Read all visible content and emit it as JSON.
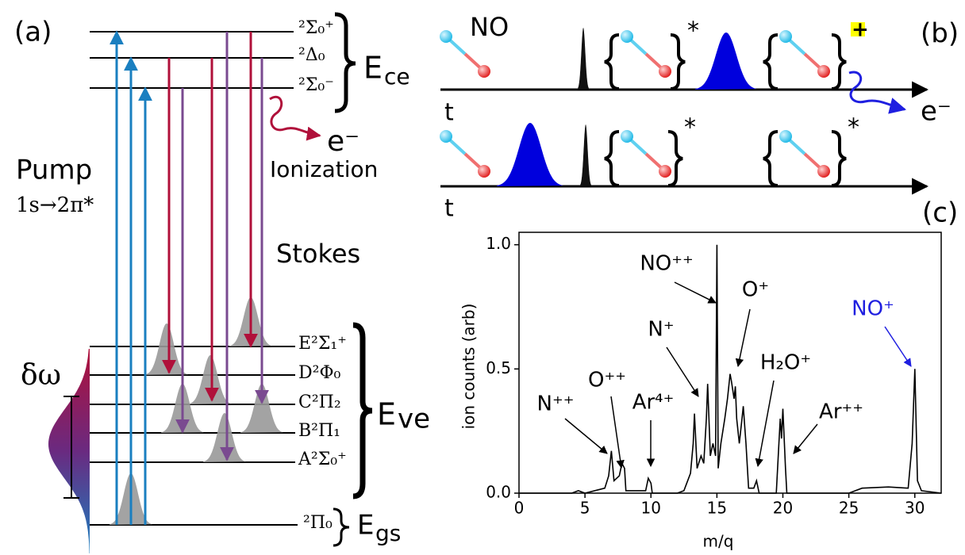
{
  "panels": {
    "a": "(a)",
    "b": "(b)",
    "c": "(c)"
  },
  "diagram_a": {
    "pump": "Pump",
    "transition": "1s→2π*",
    "stokes": "Stokes",
    "bandwidth": "δω",
    "electron": "e⁻",
    "ionization": "Ionization",
    "core_levels": [
      "²Σ₀⁺",
      "²Δ₀",
      "²Σ₀⁻"
    ],
    "valence_levels": [
      "E²Σ₁⁺",
      "D²Φ₀",
      "C²Π₂",
      "B²Π₁",
      "A²Σ₀⁺"
    ],
    "ground_level": "²Π₀",
    "manifolds": [
      {
        "main": "E",
        "sub": "ce"
      },
      {
        "main": "E",
        "sub": "ve"
      },
      {
        "main": "E",
        "sub": "gs"
      }
    ]
  },
  "diagram_b": {
    "molecule": "NO",
    "time_axes": [
      "t",
      "t"
    ],
    "excited_marks": [
      "*",
      "*",
      "*"
    ],
    "ion_mark": "+",
    "electron": "e⁻"
  },
  "chart_data": {
    "type": "line",
    "xlabel": "m/q",
    "ylabel": "ion counts (arb)",
    "color": "#000000",
    "x": [
      0,
      4,
      4.5,
      5,
      6.5,
      6.8,
      7,
      7.2,
      7.6,
      7.8,
      8,
      8.1,
      9.6,
      9.8,
      10,
      10.1,
      12,
      12.5,
      13,
      13.2,
      13.3,
      13.5,
      13.8,
      14,
      14.2,
      14.3,
      14.5,
      14.7,
      14.9,
      15,
      15.1,
      15.3,
      15.6,
      15.8,
      16,
      16.1,
      16.3,
      16.4,
      16.5,
      16.7,
      16.9,
      17,
      17.2,
      17.4,
      17.8,
      18,
      18.2,
      19.5,
      19.7,
      19.8,
      19.9,
      20,
      20.2,
      20.3,
      25,
      26,
      28,
      29.5,
      29.8,
      30,
      30.2,
      30.5,
      32
    ],
    "values": [
      0,
      0,
      0.01,
      0,
      0.02,
      0.07,
      0.17,
      0.05,
      0.07,
      0.12,
      0.1,
      0.01,
      0.01,
      0.06,
      0.04,
      0,
      0,
      0.01,
      0.08,
      0.2,
      0.32,
      0.1,
      0.15,
      0.12,
      0.3,
      0.44,
      0.15,
      0.2,
      0.15,
      1.0,
      0.1,
      0.2,
      0.3,
      0.38,
      0.48,
      0.45,
      0.38,
      0.43,
      0.3,
      0.2,
      0.3,
      0.35,
      0.2,
      0.02,
      0.02,
      0.05,
      0,
      0,
      0.2,
      0.3,
      0.22,
      0.34,
      0.1,
      0,
      0,
      0.02,
      0.025,
      0.02,
      0.2,
      0.5,
      0.05,
      0.01,
      0
    ],
    "xlim": [
      0,
      32
    ],
    "xticks": [
      0,
      5,
      10,
      15,
      20,
      25,
      30
    ],
    "ylim": [
      0,
      1.05
    ],
    "yticks": [
      {
        "value": 0,
        "label": "0.0"
      },
      {
        "value": 0.5,
        "label": "0.5"
      },
      {
        "value": 1,
        "label": "1.0"
      }
    ],
    "grid": false,
    "annotations": [
      {
        "text": "N⁺⁺"
      },
      {
        "text": "O⁺⁺"
      },
      {
        "text": "Ar⁴⁺"
      },
      {
        "text": "N⁺"
      },
      {
        "text": "NO⁺⁺"
      },
      {
        "text": "O⁺"
      },
      {
        "text": "H₂O⁺"
      },
      {
        "text": "Ar⁺⁺"
      },
      {
        "text": "NO⁺",
        "color": "#1f1fe0"
      }
    ]
  }
}
